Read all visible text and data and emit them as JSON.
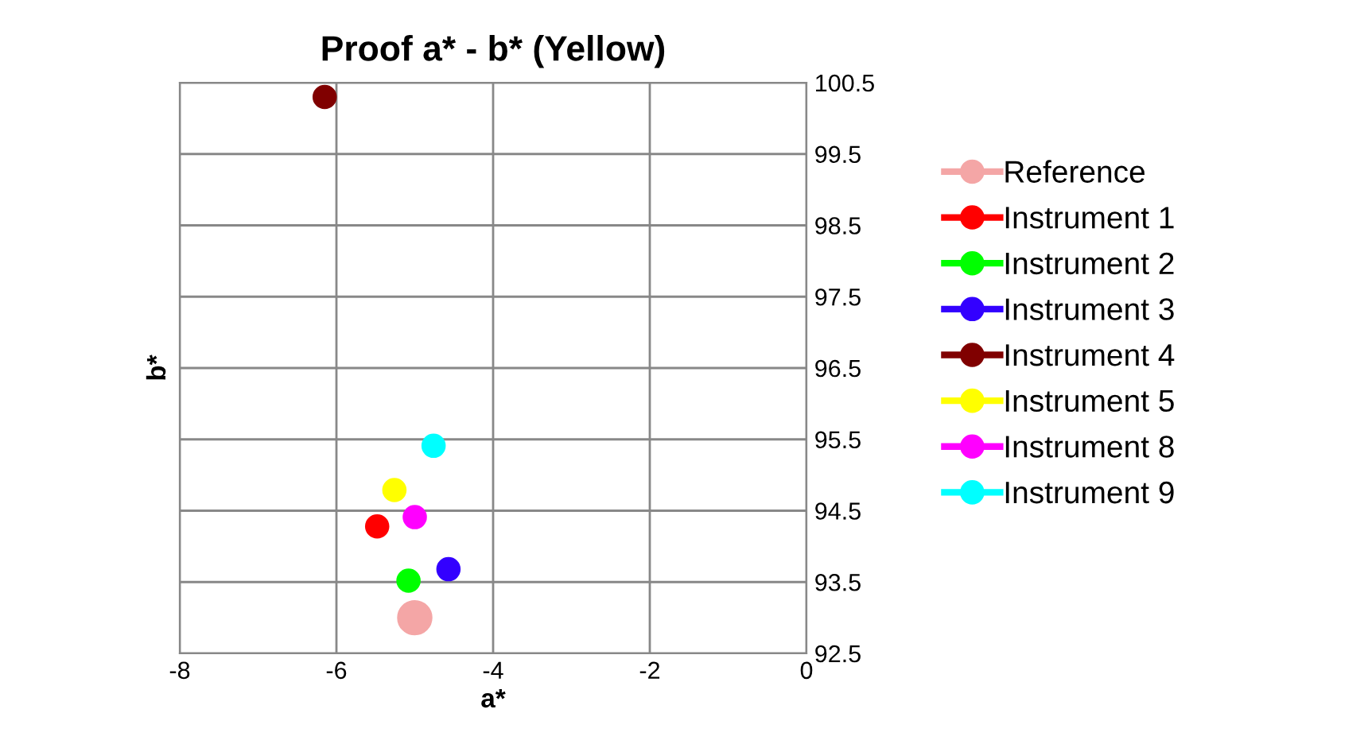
{
  "chart_data": {
    "type": "scatter",
    "title": "Proof a* - b* (Yellow)",
    "xlabel": "a*",
    "ylabel": "b*",
    "xlim": [
      -8,
      0
    ],
    "xticks": [
      -8,
      -6,
      -4,
      -2,
      0
    ],
    "ylim": [
      92.5,
      100.5
    ],
    "yticks": [
      92.5,
      93.5,
      94.5,
      95.5,
      96.5,
      97.5,
      98.5,
      99.5,
      100.5
    ],
    "grid": true,
    "legend": "right",
    "marker": "circle",
    "series": [
      {
        "name": "Reference",
        "color": "#f4a6a6",
        "x": [
          -5.0
        ],
        "values": [
          93.0
        ]
      },
      {
        "name": "Instrument 1",
        "color": "#ff0000",
        "x": [
          -5.48
        ],
        "values": [
          94.28
        ]
      },
      {
        "name": "Instrument 2",
        "color": "#00ff00",
        "x": [
          -5.08
        ],
        "values": [
          93.52
        ]
      },
      {
        "name": "Instrument 3",
        "color": "#3300ff",
        "x": [
          -4.57
        ],
        "values": [
          93.68
        ]
      },
      {
        "name": "Instrument 4",
        "color": "#800000",
        "x": [
          -6.15
        ],
        "values": [
          100.3
        ]
      },
      {
        "name": "Instrument 5",
        "color": "#ffff00",
        "x": [
          -5.26
        ],
        "values": [
          94.79
        ]
      },
      {
        "name": "Instrument 8",
        "color": "#ff00ff",
        "x": [
          -5.0
        ],
        "values": [
          94.41
        ]
      },
      {
        "name": "Instrument 9",
        "color": "#00ffff",
        "x": [
          -4.76
        ],
        "values": [
          95.41
        ]
      }
    ]
  }
}
